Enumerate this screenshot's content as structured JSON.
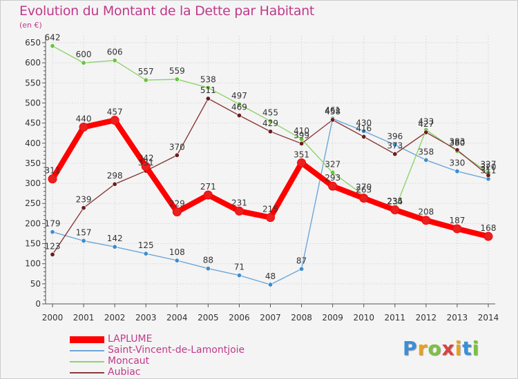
{
  "title": "Evolution du Montant de la Dette par Habitant",
  "unit": "(en €)",
  "logo": {
    "letters": [
      "P",
      "r",
      "o",
      "x",
      "i",
      "t",
      "i"
    ],
    "colors": [
      "#3a8fd8",
      "#e8a21e",
      "#7cc142",
      "#d94141",
      "#e8a21e",
      "#3a8fd8",
      "#7cc142"
    ]
  },
  "chart_data": {
    "type": "line",
    "title": "Evolution du Montant de la Dette par Habitant",
    "ylabel": "(en €)",
    "xlabel": "",
    "ylim": [
      0,
      650
    ],
    "yticks": [
      0,
      50,
      100,
      150,
      200,
      250,
      300,
      350,
      400,
      450,
      500,
      550,
      600,
      650
    ],
    "grid": true,
    "legend_position": "bottom-left",
    "x": [
      "2000",
      "2001",
      "2002",
      "2003",
      "2004",
      "2005",
      "2006",
      "2007",
      "2008",
      "2009",
      "2010",
      "2011",
      "2012",
      "2013",
      "2014"
    ],
    "series": [
      {
        "name": "LAPLUME",
        "color": "#ff0000",
        "point_color": "#e82020",
        "emphasis": true,
        "values": [
          311,
          440,
          457,
          342,
          229,
          271,
          231,
          215,
          351,
          293,
          263,
          234,
          208,
          187,
          168
        ],
        "labels": [
          "311",
          "440",
          "457",
          "342",
          "229",
          "271",
          "231",
          "215",
          "351",
          "293",
          "263",
          "234",
          "208",
          "187",
          "168"
        ]
      },
      {
        "name": "Saint-Vincent-de-Lamontjoie",
        "color": "#6ca6d8",
        "point_color": "#3d8ccc",
        "emphasis": false,
        "values": [
          179,
          157,
          142,
          125,
          108,
          88,
          71,
          48,
          87,
          461,
          430,
          396,
          358,
          330,
          311
        ],
        "labels": [
          "179",
          "157",
          "142",
          "125",
          "108",
          "88",
          "71",
          "48",
          "87",
          "461",
          "430",
          "396",
          "358",
          "330",
          "311"
        ]
      },
      {
        "name": "Moncaut",
        "color": "#8dd36a",
        "point_color": "#6ac33c",
        "emphasis": false,
        "values": [
          642,
          600,
          606,
          557,
          559,
          538,
          497,
          455,
          410,
          327,
          270,
          235,
          433,
          380,
          327
        ],
        "labels": [
          "642",
          "600",
          "606",
          "557",
          "559",
          "538",
          "497",
          "455",
          "410",
          "327",
          "270",
          "235",
          "433",
          "380",
          "327"
        ]
      },
      {
        "name": "Aubiac",
        "color": "#8a3a3a",
        "point_color": "#6a1e1e",
        "emphasis": false,
        "values": [
          123,
          239,
          298,
          331,
          370,
          511,
          469,
          429,
          399,
          458,
          416,
          373,
          427,
          383,
          320
        ],
        "labels": [
          "123",
          "239",
          "298",
          "331",
          "370",
          "511",
          "469",
          "429",
          "399",
          "458",
          "416",
          "373",
          "427",
          "383",
          "320"
        ]
      }
    ]
  }
}
